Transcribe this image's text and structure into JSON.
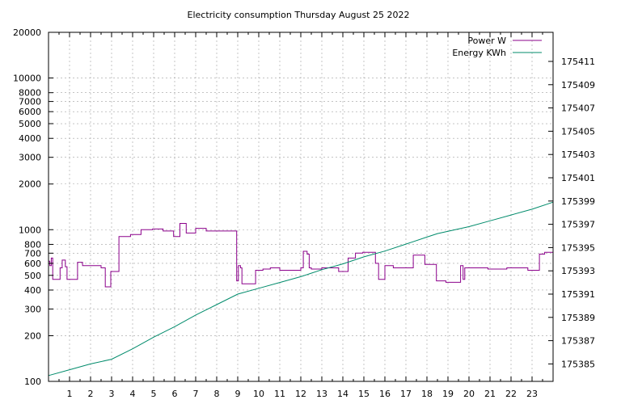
{
  "chart_data": {
    "type": "line",
    "title": "Electricity consumption Thursday August 25 2022",
    "xlim": [
      0,
      24
    ],
    "x_ticks": [
      1,
      2,
      3,
      4,
      5,
      6,
      7,
      8,
      9,
      10,
      11,
      12,
      13,
      14,
      15,
      16,
      17,
      18,
      19,
      20,
      21,
      22,
      23
    ],
    "y_scale": "log",
    "ylim": [
      100,
      20000
    ],
    "y_ticks": [
      100,
      200,
      300,
      400,
      500,
      600,
      700,
      800,
      1000,
      2000,
      3000,
      4000,
      5000,
      6000,
      7000,
      8000,
      10000,
      20000
    ],
    "y2lim": [
      175383.5,
      175413.5
    ],
    "y2_ticks": [
      175385,
      175387,
      175389,
      175391,
      175393,
      175395,
      175397,
      175399,
      175401,
      175403,
      175405,
      175407,
      175409,
      175411
    ],
    "grid": true,
    "legend_position": "top-right",
    "series": [
      {
        "name": "Power W",
        "axis": "left",
        "step": true,
        "color": "#8b008b",
        "points": [
          [
            0,
            620
          ],
          [
            0.06,
            580
          ],
          [
            0.13,
            650
          ],
          [
            0.2,
            470
          ],
          [
            0.55,
            560
          ],
          [
            0.65,
            630
          ],
          [
            0.8,
            570
          ],
          [
            0.88,
            470
          ],
          [
            1.38,
            610
          ],
          [
            1.62,
            580
          ],
          [
            2.5,
            560
          ],
          [
            2.7,
            420
          ],
          [
            2.9,
            420
          ],
          [
            2.96,
            530
          ],
          [
            3.35,
            900
          ],
          [
            3.9,
            930
          ],
          [
            4.4,
            1000
          ],
          [
            4.95,
            1010
          ],
          [
            5.45,
            980
          ],
          [
            5.95,
            900
          ],
          [
            6.25,
            1100
          ],
          [
            6.55,
            950
          ],
          [
            7.0,
            1020
          ],
          [
            7.5,
            980
          ],
          [
            8.95,
            460
          ],
          [
            9.03,
            580
          ],
          [
            9.13,
            560
          ],
          [
            9.2,
            440
          ],
          [
            9.85,
            540
          ],
          [
            10.2,
            550
          ],
          [
            10.55,
            560
          ],
          [
            11.0,
            540
          ],
          [
            12.0,
            560
          ],
          [
            12.12,
            720
          ],
          [
            12.3,
            690
          ],
          [
            12.4,
            560
          ],
          [
            12.5,
            550
          ],
          [
            13.0,
            560
          ],
          [
            13.8,
            530
          ],
          [
            14.25,
            650
          ],
          [
            14.6,
            700
          ],
          [
            14.95,
            710
          ],
          [
            15.55,
            600
          ],
          [
            15.7,
            470
          ],
          [
            16.0,
            580
          ],
          [
            16.4,
            560
          ],
          [
            17.35,
            680
          ],
          [
            17.9,
            590
          ],
          [
            18.45,
            460
          ],
          [
            18.9,
            450
          ],
          [
            19.6,
            580
          ],
          [
            19.72,
            470
          ],
          [
            19.8,
            560
          ],
          [
            20.0,
            560
          ],
          [
            20.9,
            550
          ],
          [
            21.8,
            560
          ],
          [
            22.8,
            540
          ],
          [
            23.35,
            690
          ],
          [
            23.6,
            710
          ],
          [
            24.0,
            710
          ]
        ]
      },
      {
        "name": "Energy KWh",
        "axis": "right",
        "step": false,
        "color": "#008b6b",
        "points": [
          [
            0,
            175384.0
          ],
          [
            1.0,
            175384.5
          ],
          [
            2.0,
            175385.0
          ],
          [
            3.0,
            175385.4
          ],
          [
            4.0,
            175386.3
          ],
          [
            5.0,
            175387.3
          ],
          [
            6.0,
            175388.2
          ],
          [
            7.0,
            175389.2
          ],
          [
            8.0,
            175390.1
          ],
          [
            9.0,
            175391.0
          ],
          [
            10.0,
            175391.5
          ],
          [
            11.0,
            175392.0
          ],
          [
            12.0,
            175392.5
          ],
          [
            13.0,
            175393.1
          ],
          [
            14.0,
            175393.6
          ],
          [
            15.0,
            175394.2
          ],
          [
            16.0,
            175394.7
          ],
          [
            17.0,
            175395.3
          ],
          [
            18.0,
            175395.9
          ],
          [
            18.5,
            175396.2
          ],
          [
            19.0,
            175396.4
          ],
          [
            20.0,
            175396.8
          ],
          [
            21.0,
            175397.3
          ],
          [
            22.0,
            175397.8
          ],
          [
            23.0,
            175398.3
          ],
          [
            24.0,
            175398.9
          ]
        ]
      }
    ]
  }
}
